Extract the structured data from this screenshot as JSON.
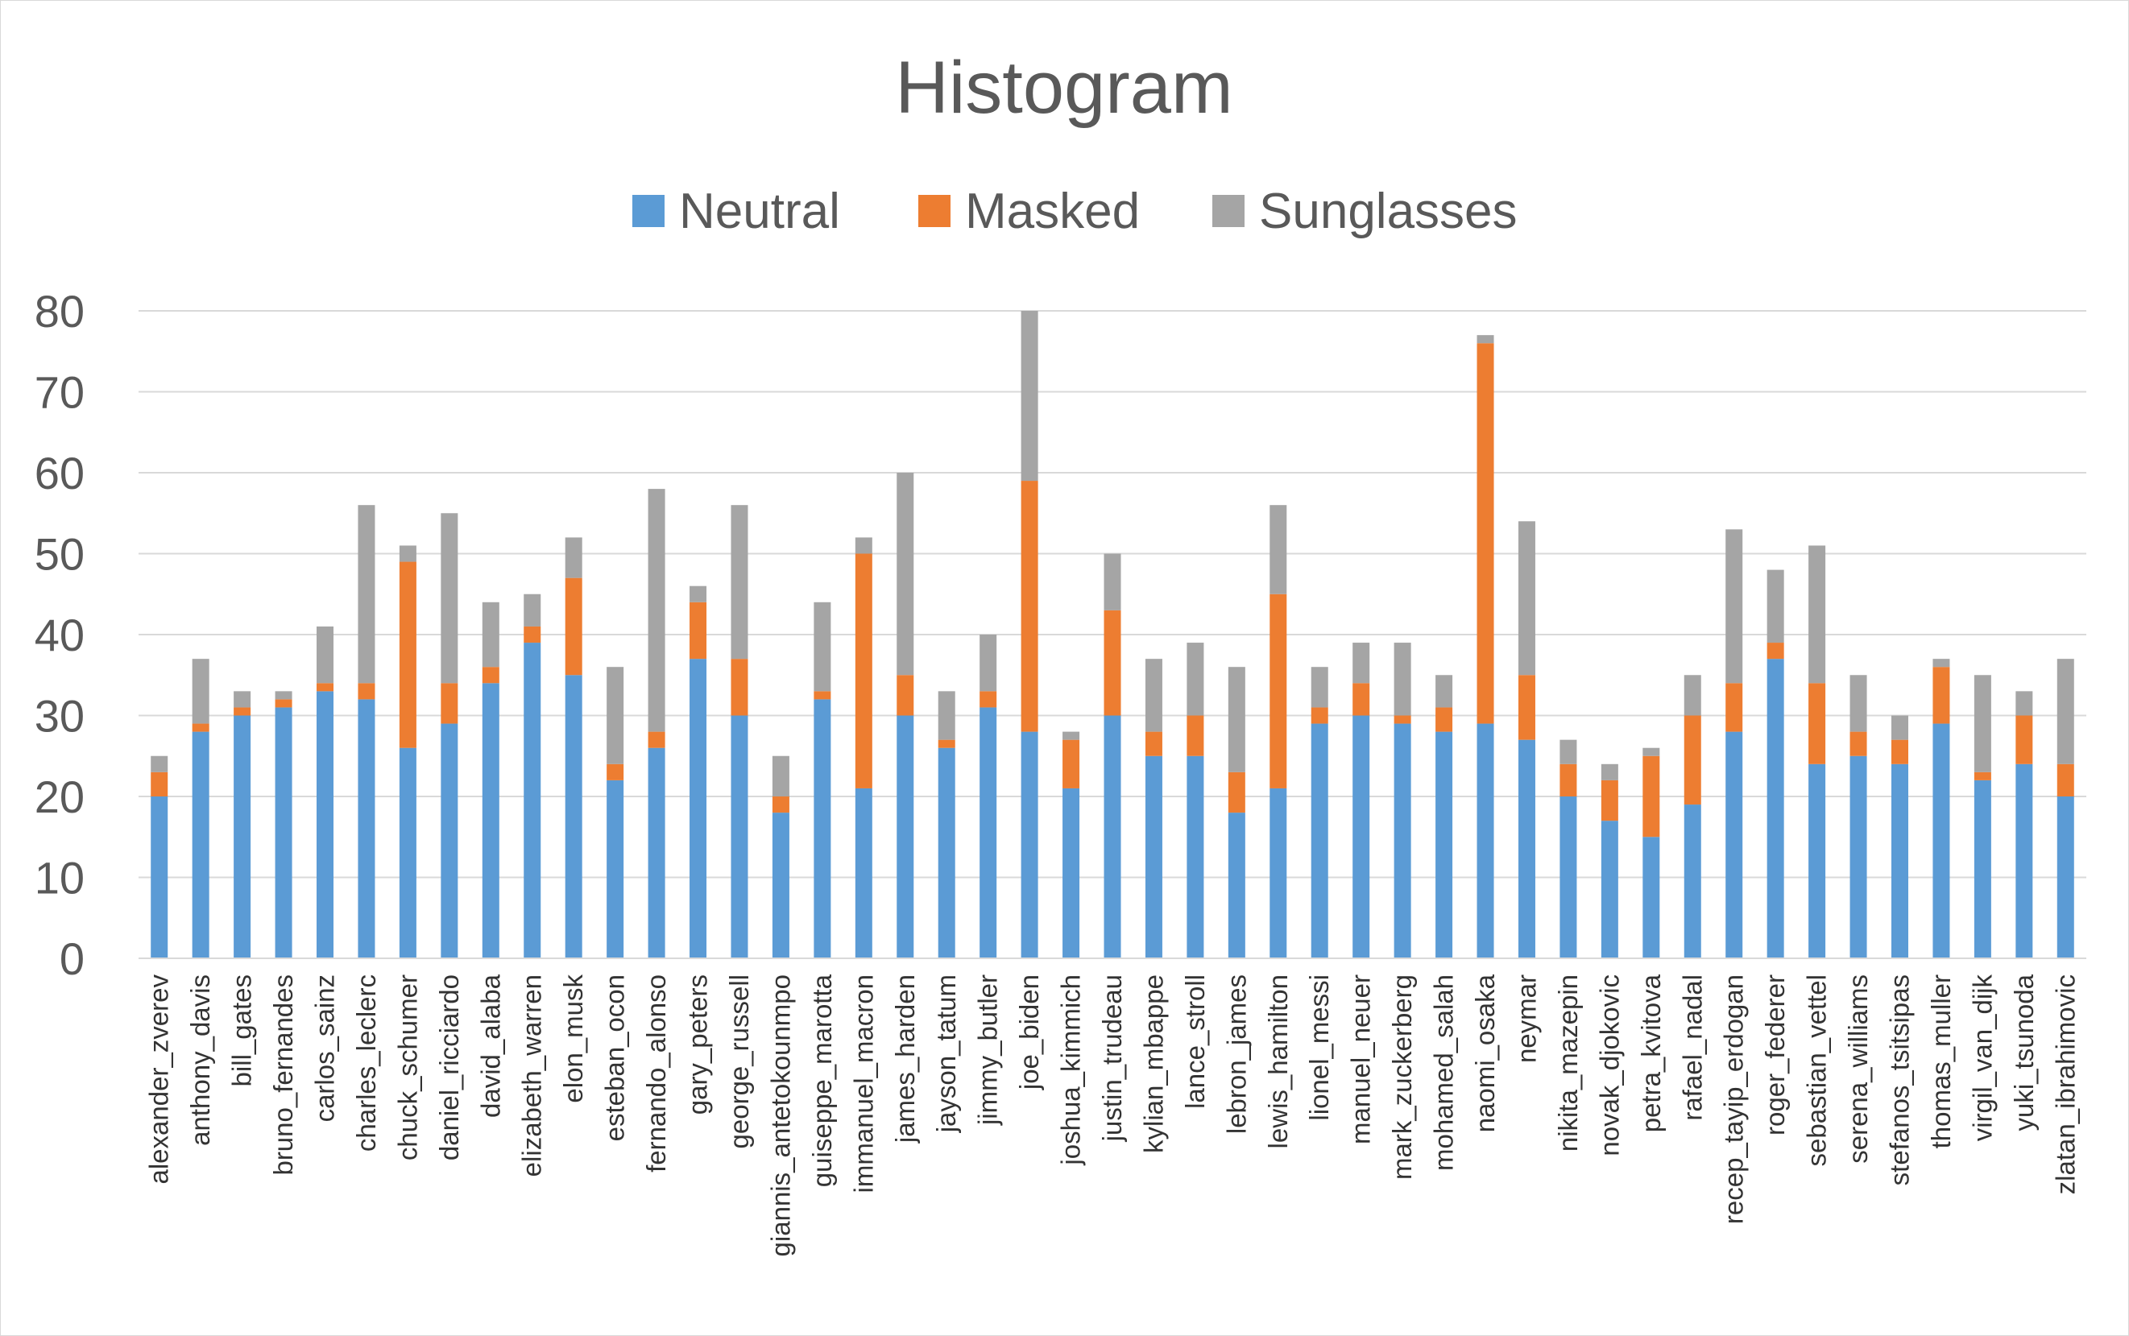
{
  "chart_data": {
    "type": "bar",
    "stacked": true,
    "title": "Histogram",
    "xlabel": "",
    "ylabel": "",
    "ylim": [
      0,
      80
    ],
    "yticks": [
      0,
      10,
      20,
      30,
      40,
      50,
      60,
      70,
      80
    ],
    "grid": true,
    "legend_position": "top-center",
    "categories": [
      "alexander_zverev",
      "anthony_davis",
      "bill_gates",
      "bruno_fernandes",
      "carlos_sainz",
      "charles_leclerc",
      "chuck_schumer",
      "daniel_ricciardo",
      "david_alaba",
      "elizabeth_warren",
      "elon_musk",
      "esteban_ocon",
      "fernando_alonso",
      "gary_peters",
      "george_russell",
      "giannis_antetokounmpo",
      "guiseppe_marotta",
      "immanuel_macron",
      "james_harden",
      "jayson_tatum",
      "jimmy_butler",
      "joe_biden",
      "joshua_kimmich",
      "justin_trudeau",
      "kylian_mbappe",
      "lance_stroll",
      "lebron_james",
      "lewis_hamilton",
      "lionel_messi",
      "manuel_neuer",
      "mark_zuckerberg",
      "mohamed_salah",
      "naomi_osaka",
      "neymar",
      "nikita_mazepin",
      "novak_djokovic",
      "petra_kvitova",
      "rafael_nadal",
      "recep_tayip_erdogan",
      "roger_federer",
      "sebastian_vettel",
      "serena_williams",
      "stefanos_tsitsipas",
      "thomas_muller",
      "virgil_van_dijk",
      "yuki_tsunoda",
      "zlatan_ibrahimovic"
    ],
    "series": [
      {
        "name": "Neutral",
        "color": "#5b9bd5",
        "values": [
          20,
          28,
          30,
          31,
          33,
          32,
          26,
          29,
          34,
          39,
          35,
          22,
          26,
          37,
          30,
          18,
          32,
          21,
          30,
          26,
          31,
          28,
          21,
          30,
          25,
          25,
          18,
          21,
          29,
          30,
          29,
          28,
          29,
          27,
          20,
          17,
          15,
          19,
          28,
          37,
          24,
          25,
          24,
          29,
          22,
          24,
          20
        ]
      },
      {
        "name": "Masked",
        "color": "#ed7d31",
        "values": [
          3,
          1,
          1,
          1,
          1,
          2,
          23,
          5,
          2,
          2,
          12,
          2,
          2,
          7,
          7,
          2,
          1,
          29,
          5,
          1,
          2,
          31,
          6,
          13,
          3,
          5,
          5,
          24,
          2,
          4,
          1,
          3,
          47,
          8,
          4,
          5,
          10,
          11,
          6,
          2,
          10,
          3,
          3,
          7,
          1,
          6,
          4
        ]
      },
      {
        "name": "Sunglasses",
        "color": "#a5a5a5",
        "values": [
          2,
          8,
          2,
          1,
          7,
          22,
          2,
          21,
          8,
          4,
          5,
          12,
          30,
          2,
          19,
          5,
          11,
          2,
          25,
          6,
          7,
          21,
          1,
          7,
          9,
          9,
          13,
          11,
          5,
          5,
          9,
          4,
          1,
          19,
          3,
          2,
          1,
          5,
          19,
          9,
          17,
          7,
          3,
          1,
          12,
          3,
          13
        ]
      }
    ]
  }
}
